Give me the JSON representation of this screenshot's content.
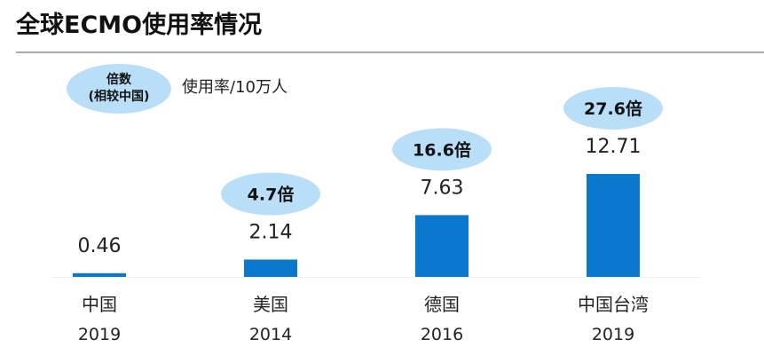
{
  "title": "全球ECMO使用率情况",
  "legend": {
    "line1": "倍数",
    "line2": "(相较中国)"
  },
  "unit_label": "使用率/10万人",
  "colors": {
    "bar": "#0a78cc",
    "badge": "#b9def8",
    "text": "#222222"
  },
  "chart_data": {
    "type": "bar",
    "title": "全球ECMO使用率情况",
    "ylabel": "使用率/10万人",
    "categories": [
      "中国",
      "美国",
      "德国",
      "中国台湾"
    ],
    "years": [
      "2019",
      "2014",
      "2016",
      "2019"
    ],
    "values": [
      0.46,
      2.14,
      7.63,
      12.71
    ],
    "value_labels": [
      "0.46",
      "2.14",
      "7.63",
      "12.71"
    ],
    "multiples": [
      "",
      "4.7倍",
      "16.6倍",
      "27.6倍"
    ],
    "ylim": [
      0,
      12.71
    ],
    "grid": false,
    "legend_position": "top-left"
  }
}
